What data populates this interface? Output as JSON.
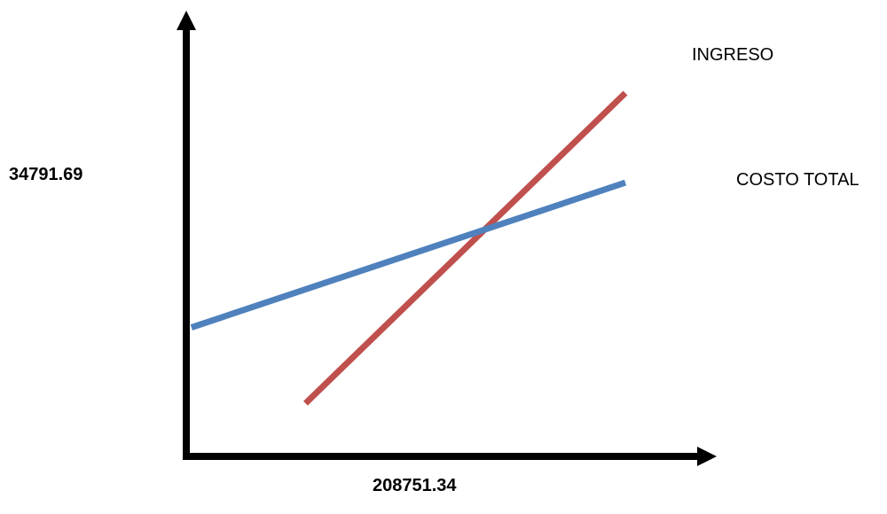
{
  "chart_data": {
    "type": "line",
    "title": "",
    "xlabel": "",
    "ylabel": "",
    "x_value_label": "208751.34",
    "y_value_label": "34791.69",
    "grid": false,
    "series": [
      {
        "name": "INGRESO",
        "color": "#c0504d",
        "points": [
          [
            0.3,
            0.1
          ],
          [
            1.0,
            1.0
          ]
        ]
      },
      {
        "name": "COSTO TOTAL",
        "color": "#4f81bd",
        "points": [
          [
            0.05,
            0.32
          ],
          [
            1.0,
            0.74
          ]
        ]
      }
    ]
  }
}
